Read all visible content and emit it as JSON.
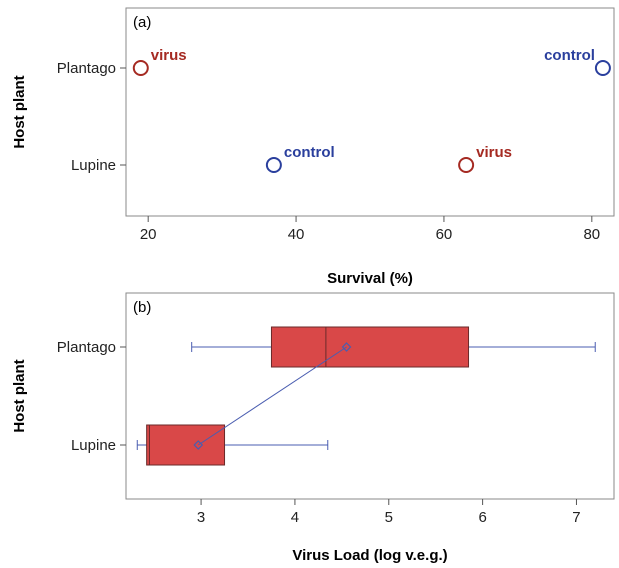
{
  "chart_data": [
    {
      "panel_label": "(a)",
      "type": "scatter",
      "xlabel": "Survival (%)",
      "ylabel": "Host plant",
      "categories": [
        "Plantago",
        "Lupine"
      ],
      "xlim": [
        17,
        83
      ],
      "xticks": [
        20,
        40,
        60,
        80
      ],
      "grid": false,
      "points": [
        {
          "category": "Plantago",
          "x": 19,
          "label": "virus",
          "color": "#a52a22"
        },
        {
          "category": "Plantago",
          "x": 81.5,
          "label": "control",
          "color": "#2a3f9d"
        },
        {
          "category": "Lupine",
          "x": 37,
          "label": "control",
          "color": "#2a3f9d"
        },
        {
          "category": "Lupine",
          "x": 63,
          "label": "virus",
          "color": "#a52a22"
        }
      ]
    },
    {
      "panel_label": "(b)",
      "type": "box",
      "xlabel": "Virus Load (log v.e.g.)",
      "ylabel": "Host plant",
      "categories": [
        "Plantago",
        "Lupine"
      ],
      "xlim": [
        2.2,
        7.4
      ],
      "xticks": [
        3,
        4,
        5,
        6,
        7
      ],
      "grid": false,
      "box_color": "#d94848",
      "line_color": "#4a5db0",
      "boxes": [
        {
          "category": "Plantago",
          "whisker_low": 2.9,
          "q1": 3.75,
          "median": 4.33,
          "q3": 5.85,
          "whisker_high": 7.2,
          "mean": 4.55
        },
        {
          "category": "Lupine",
          "whisker_low": 2.32,
          "q1": 2.42,
          "median": 2.45,
          "q3": 3.25,
          "whisker_high": 4.35,
          "mean": 2.97
        }
      ]
    }
  ]
}
